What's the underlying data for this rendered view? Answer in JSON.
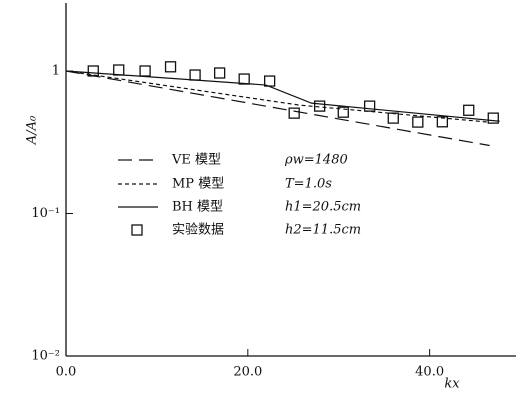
{
  "chart_data": {
    "type": "line",
    "xlabel": "kx",
    "ylabel": "A/A₀",
    "xlim": [
      0,
      49.5
    ],
    "xticks": [
      {
        "value": 0,
        "label": "0.0"
      },
      {
        "value": 20,
        "label": "20.0"
      },
      {
        "value": 40,
        "label": "40.0"
      }
    ],
    "ylim": [
      0.01,
      3
    ],
    "ylog": true,
    "yticks": [
      {
        "value": 0.01,
        "label": "10⁻²"
      },
      {
        "value": 0.1,
        "label": "10⁻¹"
      },
      {
        "value": 1,
        "label": "1"
      }
    ],
    "color": "#111111",
    "series": [
      {
        "name": "VE 模型",
        "style": "dashed",
        "x": [
          0,
          46.6
        ],
        "values": [
          1,
          0.3
        ]
      },
      {
        "name": "MP 模型",
        "style": "dotted",
        "x": [
          0,
          25.7,
          46.6
        ],
        "values": [
          1,
          0.576,
          0.437
        ]
      },
      {
        "name": "BH 模型",
        "style": "solid",
        "x": [
          0,
          22,
          27,
          47.7
        ],
        "values": [
          1,
          0.797,
          0.595,
          0.444
        ]
      },
      {
        "name": "实验数据",
        "style": "markers",
        "x": [
          3,
          5.8,
          8.7,
          11.5,
          14.2,
          16.9,
          19.6,
          22.4,
          25.1,
          27.9,
          30.5,
          33.4,
          36,
          38.7,
          41.4,
          44.3,
          47
        ],
        "values": [
          1,
          1.016,
          1,
          1.07,
          0.937,
          0.968,
          0.878,
          0.85,
          0.506,
          0.567,
          0.514,
          0.567,
          0.467,
          0.438,
          0.44,
          0.53,
          0.467
        ]
      }
    ],
    "annotations": [
      "ρw=1480",
      "T=1.0s",
      "h1=20.5cm",
      "h2=11.5cm"
    ]
  }
}
